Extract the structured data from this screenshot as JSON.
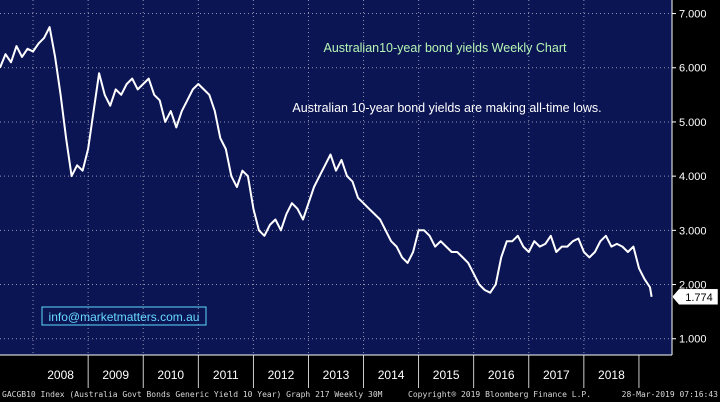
{
  "chart_data": {
    "type": "line",
    "title": "Australian10-year bond yields Weekly Chart",
    "annotation": "Australian 10-year bond yields are making all-time lows.",
    "watermark": "info@marketmatters.com.au",
    "x_tick_labels": [
      "2008",
      "2009",
      "2010",
      "2011",
      "2012",
      "2013",
      "2014",
      "2015",
      "2016",
      "2017",
      "2018"
    ],
    "y_tick_labels": [
      "1.000",
      "2.000",
      "3.000",
      "4.000",
      "5.000",
      "6.000",
      "7.000"
    ],
    "ylim": [
      0.7,
      7.25
    ],
    "xlim": [
      2007.4,
      2019.6
    ],
    "last_value_label": "1.774",
    "grid": true,
    "series": [
      {
        "color": "#ffffff",
        "x": [
          2007.4,
          2007.5,
          2007.6,
          2007.7,
          2007.8,
          2007.9,
          2008.0,
          2008.1,
          2008.2,
          2008.3,
          2008.4,
          2008.5,
          2008.6,
          2008.7,
          2008.8,
          2008.9,
          2009.0,
          2009.1,
          2009.2,
          2009.3,
          2009.4,
          2009.5,
          2009.6,
          2009.7,
          2009.8,
          2009.9,
          2010.0,
          2010.1,
          2010.2,
          2010.3,
          2010.4,
          2010.5,
          2010.6,
          2010.7,
          2010.8,
          2010.9,
          2011.0,
          2011.1,
          2011.2,
          2011.3,
          2011.4,
          2011.5,
          2011.6,
          2011.7,
          2011.8,
          2011.9,
          2012.0,
          2012.1,
          2012.2,
          2012.3,
          2012.4,
          2012.5,
          2012.6,
          2012.7,
          2012.8,
          2012.9,
          2013.0,
          2013.1,
          2013.2,
          2013.3,
          2013.4,
          2013.5,
          2013.6,
          2013.7,
          2013.8,
          2013.9,
          2014.0,
          2014.1,
          2014.2,
          2014.3,
          2014.4,
          2014.5,
          2014.6,
          2014.7,
          2014.8,
          2014.9,
          2015.0,
          2015.1,
          2015.2,
          2015.3,
          2015.4,
          2015.5,
          2015.6,
          2015.7,
          2015.8,
          2015.9,
          2016.0,
          2016.1,
          2016.2,
          2016.3,
          2016.4,
          2016.5,
          2016.6,
          2016.7,
          2016.8,
          2016.9,
          2017.0,
          2017.1,
          2017.2,
          2017.3,
          2017.4,
          2017.5,
          2017.6,
          2017.7,
          2017.8,
          2017.9,
          2018.0,
          2018.1,
          2018.2,
          2018.3,
          2018.4,
          2018.5,
          2018.6,
          2018.7,
          2018.8,
          2018.9,
          2019.0,
          2019.1,
          2019.2,
          2019.23
        ],
        "values": [
          6.0,
          6.25,
          6.1,
          6.4,
          6.2,
          6.35,
          6.3,
          6.45,
          6.55,
          6.75,
          6.2,
          5.5,
          4.7,
          4.0,
          4.2,
          4.1,
          4.5,
          5.2,
          5.9,
          5.5,
          5.3,
          5.6,
          5.5,
          5.7,
          5.8,
          5.6,
          5.7,
          5.8,
          5.5,
          5.4,
          5.0,
          5.2,
          4.9,
          5.2,
          5.4,
          5.6,
          5.7,
          5.6,
          5.5,
          5.2,
          4.7,
          4.5,
          4.0,
          3.8,
          4.1,
          4.0,
          3.4,
          3.0,
          2.9,
          3.1,
          3.2,
          3.0,
          3.3,
          3.5,
          3.4,
          3.2,
          3.5,
          3.8,
          4.0,
          4.2,
          4.4,
          4.1,
          4.3,
          4.0,
          3.9,
          3.6,
          3.5,
          3.4,
          3.3,
          3.2,
          3.0,
          2.8,
          2.7,
          2.5,
          2.4,
          2.6,
          3.0,
          3.0,
          2.9,
          2.7,
          2.8,
          2.7,
          2.6,
          2.6,
          2.5,
          2.4,
          2.2,
          2.0,
          1.9,
          1.85,
          2.0,
          2.5,
          2.8,
          2.8,
          2.9,
          2.7,
          2.6,
          2.8,
          2.7,
          2.75,
          2.9,
          2.6,
          2.7,
          2.7,
          2.8,
          2.85,
          2.6,
          2.5,
          2.6,
          2.8,
          2.9,
          2.7,
          2.75,
          2.7,
          2.6,
          2.7,
          2.3,
          2.1,
          1.95,
          1.774
        ]
      }
    ]
  },
  "footer": {
    "left": "GACGB10 Index (Australia Govt Bonds Generic Yield 10 Year) Graph 217  Weekly 30M",
    "center": "Copyright® 2019 Bloomberg Finance L.P.",
    "right": "28-Mar-2019 07:16:43"
  },
  "colors": {
    "background": "#0c1553",
    "title": "#b5f5b5",
    "line": "#ffffff",
    "watermark_border": "#5bd9ff",
    "watermark_text": "#66d9ff"
  }
}
